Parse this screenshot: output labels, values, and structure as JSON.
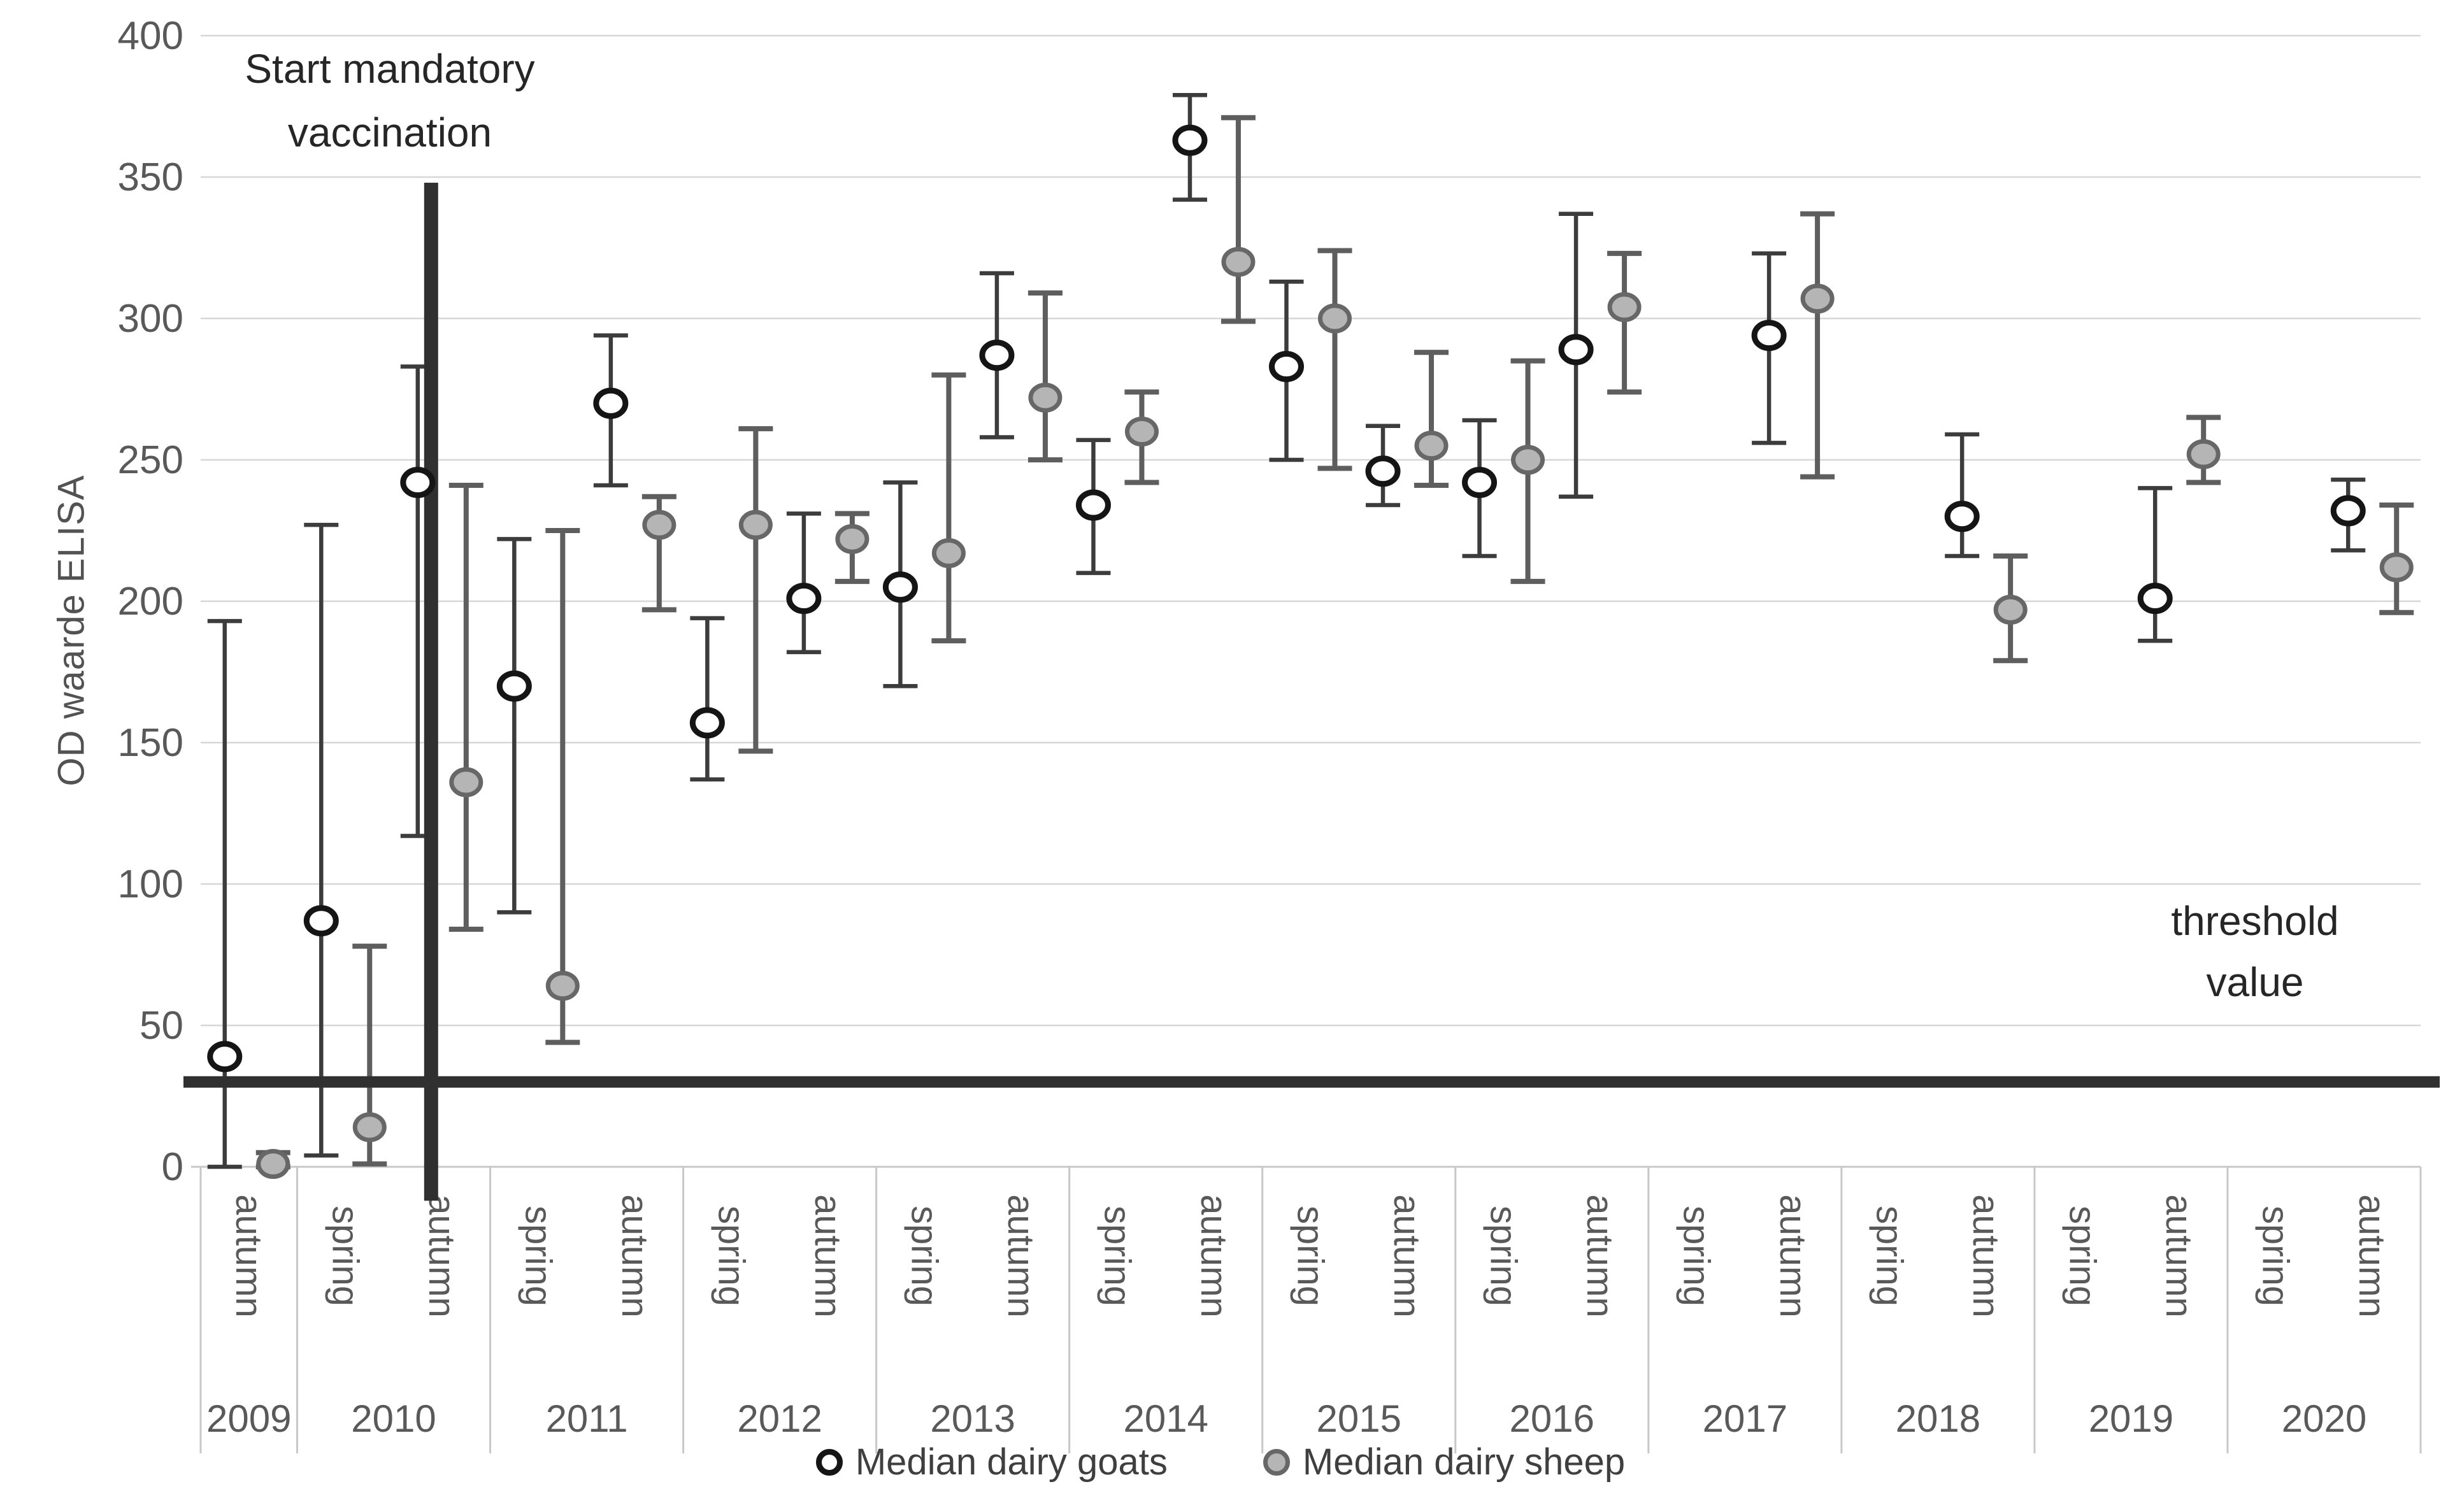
{
  "chart_data": {
    "type": "scatter",
    "ylabel": "OD waarde ELISA",
    "ylim": [
      0,
      400
    ],
    "yticks": [
      0,
      50,
      100,
      150,
      200,
      250,
      300,
      350,
      400
    ],
    "grid": "horizontal",
    "threshold_value": 30,
    "vaccination_line": {
      "position_year": "2010",
      "position_season": "autumn",
      "top_value": 348,
      "bottom_value": -12
    },
    "legend_position": "bottom",
    "series": [
      {
        "name": "Median dairy goats",
        "marker": "open-circle",
        "stroke": "#151515",
        "fill": "#ffffff",
        "bar_color": "#3c3c3c"
      },
      {
        "name": "Median dairy sheep",
        "marker": "gray-circle",
        "stroke": "#676767",
        "fill": "#b5b5b5",
        "bar_color": "#5e5e5e"
      }
    ],
    "points": [
      {
        "year": "2009",
        "season": "autumn",
        "goat": {
          "median": 39,
          "low": 0,
          "high": 193
        },
        "sheep": {
          "median": 1,
          "low": 0,
          "high": 5
        }
      },
      {
        "year": "2010",
        "season": "spring",
        "goat": {
          "median": 87,
          "low": 4,
          "high": 227
        },
        "sheep": {
          "median": 14,
          "low": 1,
          "high": 78
        }
      },
      {
        "year": "2010",
        "season": "autumn",
        "goat": {
          "median": 242,
          "low": 117,
          "high": 283
        },
        "sheep": {
          "median": 136,
          "low": 84,
          "high": 241
        }
      },
      {
        "year": "2011",
        "season": "spring",
        "goat": {
          "median": 170,
          "low": 90,
          "high": 222
        },
        "sheep": {
          "median": 64,
          "low": 44,
          "high": 225
        }
      },
      {
        "year": "2011",
        "season": "autumn",
        "goat": {
          "median": 270,
          "low": 241,
          "high": 294
        },
        "sheep": {
          "median": 227,
          "low": 197,
          "high": 237
        }
      },
      {
        "year": "2012",
        "season": "spring",
        "goat": {
          "median": 157,
          "low": 137,
          "high": 194
        },
        "sheep": {
          "median": 227,
          "low": 147,
          "high": 261
        }
      },
      {
        "year": "2012",
        "season": "autumn",
        "goat": {
          "median": 201,
          "low": 182,
          "high": 231
        },
        "sheep": {
          "median": 222,
          "low": 207,
          "high": 231
        }
      },
      {
        "year": "2013",
        "season": "spring",
        "goat": {
          "median": 205,
          "low": 170,
          "high": 242
        },
        "sheep": {
          "median": 217,
          "low": 186,
          "high": 280
        }
      },
      {
        "year": "2013",
        "season": "autumn",
        "goat": {
          "median": 287,
          "low": 258,
          "high": 316
        },
        "sheep": {
          "median": 272,
          "low": 250,
          "high": 309
        }
      },
      {
        "year": "2014",
        "season": "spring",
        "goat": {
          "median": 234,
          "low": 210,
          "high": 257
        },
        "sheep": {
          "median": 260,
          "low": 242,
          "high": 274
        }
      },
      {
        "year": "2014",
        "season": "autumn",
        "goat": {
          "median": 363,
          "low": 342,
          "high": 379
        },
        "sheep": {
          "median": 320,
          "low": 299,
          "high": 371
        }
      },
      {
        "year": "2015",
        "season": "spring",
        "goat": {
          "median": 283,
          "low": 250,
          "high": 313
        },
        "sheep": {
          "median": 300,
          "low": 247,
          "high": 324
        }
      },
      {
        "year": "2015",
        "season": "autumn",
        "goat": {
          "median": 246,
          "low": 234,
          "high": 262
        },
        "sheep": {
          "median": 255,
          "low": 241,
          "high": 288
        }
      },
      {
        "year": "2016",
        "season": "spring",
        "goat": {
          "median": 242,
          "low": 216,
          "high": 264
        },
        "sheep": {
          "median": 250,
          "low": 207,
          "high": 285
        }
      },
      {
        "year": "2016",
        "season": "autumn",
        "goat": {
          "median": 289,
          "low": 237,
          "high": 337
        },
        "sheep": {
          "median": 304,
          "low": 274,
          "high": 323
        }
      },
      {
        "year": "2017",
        "season": "spring",
        "goat": null,
        "sheep": null
      },
      {
        "year": "2017",
        "season": "autumn",
        "goat": {
          "median": 294,
          "low": 256,
          "high": 323
        },
        "sheep": {
          "median": 307,
          "low": 244,
          "high": 337
        }
      },
      {
        "year": "2018",
        "season": "spring",
        "goat": null,
        "sheep": null
      },
      {
        "year": "2018",
        "season": "autumn",
        "goat": {
          "median": 230,
          "low": 216,
          "high": 259
        },
        "sheep": {
          "median": 197,
          "low": 179,
          "high": 216
        }
      },
      {
        "year": "2019",
        "season": "spring",
        "goat": null,
        "sheep": null
      },
      {
        "year": "2019",
        "season": "autumn",
        "goat": {
          "median": 201,
          "low": 186,
          "high": 240
        },
        "sheep": {
          "median": 252,
          "low": 242,
          "high": 265
        }
      },
      {
        "year": "2020",
        "season": "spring",
        "goat": null,
        "sheep": null
      },
      {
        "year": "2020",
        "season": "autumn",
        "goat": {
          "median": 232,
          "low": 218,
          "high": 243
        },
        "sheep": {
          "median": 212,
          "low": 196,
          "high": 234
        }
      }
    ],
    "annotations": {
      "vaccination": {
        "line1": "Start mandatory",
        "line2": "vaccination"
      },
      "threshold": {
        "line1": "threshold",
        "line2": "value"
      }
    },
    "colors": {
      "gridline": "#d7d7d7",
      "axis": "#c8c8c8",
      "tick_text": "#595959",
      "annotation_text": "#262626",
      "thick_line": "#303030",
      "goat_stroke": "#151515",
      "sheep_fill": "#b5b5b5",
      "sheep_stroke": "#676767"
    }
  }
}
